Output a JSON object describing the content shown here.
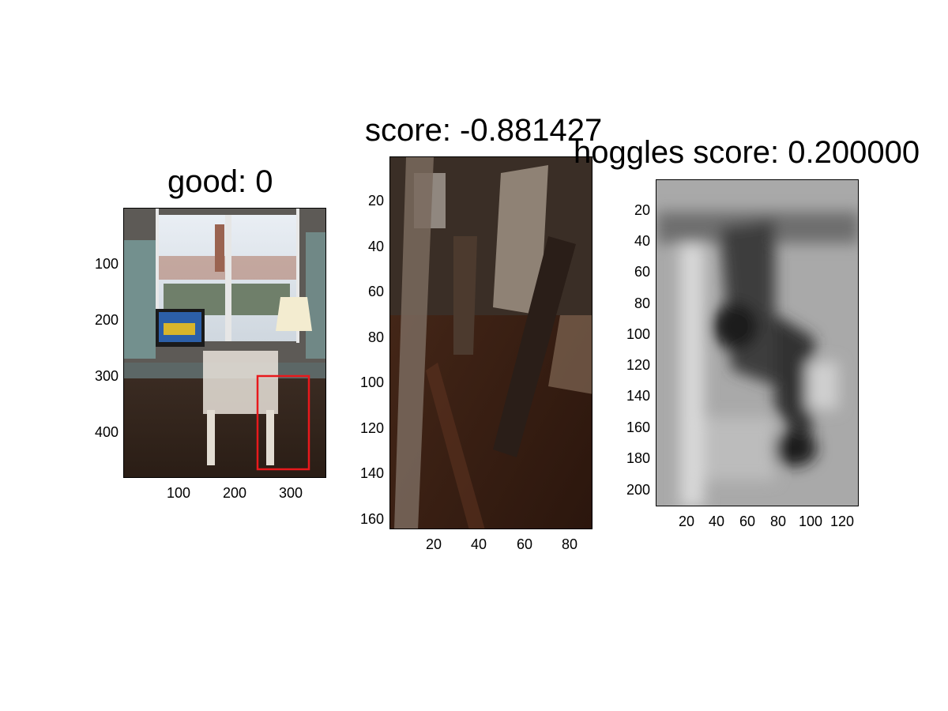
{
  "panels": [
    {
      "title": "good: 0",
      "y_ticks": [
        "100",
        "200",
        "300",
        "400"
      ],
      "x_ticks": [
        "100",
        "200",
        "300"
      ],
      "highlight_box_color": "#e8191c"
    },
    {
      "title": "score: -0.881427",
      "y_ticks": [
        "20",
        "40",
        "60",
        "80",
        "100",
        "120",
        "140",
        "160"
      ],
      "x_ticks": [
        "20",
        "40",
        "60",
        "80"
      ]
    },
    {
      "title": "hoggles score: 0.200000",
      "y_ticks": [
        "20",
        "40",
        "60",
        "80",
        "100",
        "120",
        "140",
        "160",
        "180",
        "200"
      ],
      "x_ticks": [
        "20",
        "40",
        "60",
        "80",
        "100",
        "120"
      ]
    }
  ]
}
